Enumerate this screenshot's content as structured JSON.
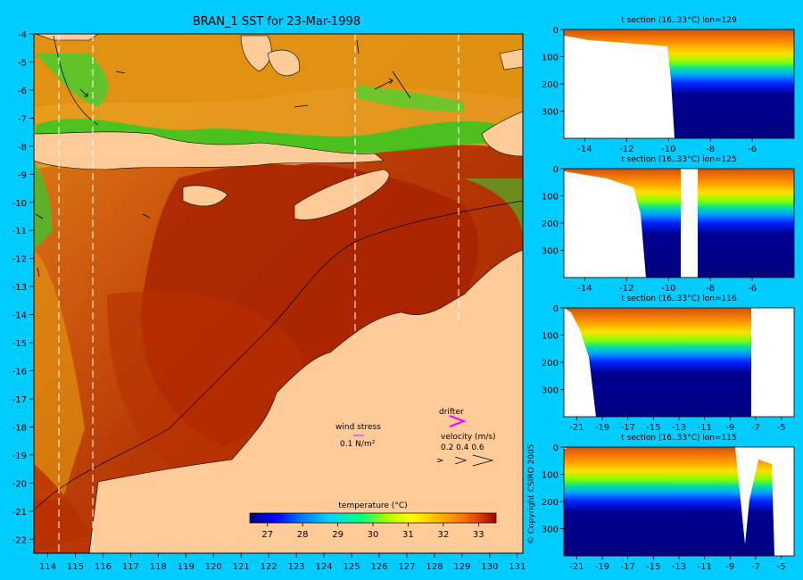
{
  "main": {
    "title": "BRAN_1 SST for 23-Mar-1998",
    "xticks": [
      "114",
      "115",
      "116",
      "117",
      "118",
      "119",
      "120",
      "121",
      "122",
      "123",
      "124",
      "125",
      "126",
      "127",
      "128",
      "129",
      "130",
      "131"
    ],
    "yticks": [
      "-4",
      "-5",
      "-6",
      "-7",
      "-8",
      "-9",
      "-10",
      "-11",
      "-12",
      "-13",
      "-14",
      "-15",
      "-16",
      "-17",
      "-18",
      "-19",
      "-20",
      "-21",
      "-22"
    ],
    "colorbar": {
      "title": "temperature (°C)",
      "ticks": [
        "27",
        "28",
        "29",
        "30",
        "31",
        "32",
        "33"
      ],
      "colors": [
        "#000080",
        "#0000ff",
        "#0080ff",
        "#00d0ff",
        "#00ff80",
        "#80ff00",
        "#ffff00",
        "#ffc000",
        "#ff8000",
        "#e04000",
        "#a00000"
      ]
    },
    "legend": {
      "wind_stress_label": "wind stress",
      "wind_stress_value": "0.1 N/m²",
      "drifter_label": "drifter",
      "velocity_label": "velocity (m/s)",
      "velocity_values": "0.2 0.4 0.6"
    },
    "colors": {
      "land": "#ffcc99",
      "warm": "#b03000",
      "mid": "#e08010",
      "cool": "#20c820"
    }
  },
  "sections": [
    {
      "title": "t section (16..33°C) lon=129",
      "xticks": [
        "-14",
        "-12",
        "-10",
        "-8",
        "-6"
      ],
      "yticks": [
        "0",
        "100",
        "200",
        "300"
      ]
    },
    {
      "title": "t section (16..33°C) lon=125",
      "xticks": [
        "-14",
        "-12",
        "-10",
        "-8",
        "-6"
      ],
      "yticks": [
        "0",
        "100",
        "200",
        "300"
      ]
    },
    {
      "title": "t section (16..33°C) lon=116",
      "xticks": [
        "-21",
        "-19",
        "-17",
        "-15",
        "-13",
        "-11",
        "-9",
        "-7",
        "-5"
      ],
      "yticks": [
        "0",
        "100",
        "200",
        "300"
      ]
    },
    {
      "title": "t section (16..33°C) lon=115",
      "xticks": [
        "-21",
        "-19",
        "-17",
        "-15",
        "-13",
        "-11",
        "-9",
        "-7",
        "-5"
      ],
      "yticks": [
        "0",
        "100",
        "200",
        "300"
      ]
    }
  ],
  "copyright": "© Copyright CSIRO 2005",
  "chart_data": {
    "type": "heatmap",
    "title": "BRAN_1 SST for 23-Mar-1998",
    "xlabel": "",
    "ylabel": "",
    "xlim": [
      113.5,
      131.2
    ],
    "ylim": [
      -22.5,
      -4
    ],
    "colorbar_range": [
      26.5,
      33.5
    ],
    "colorbar_label": "temperature (°C)",
    "section_longitudes": [
      114.6,
      115.8,
      125.4,
      129.2
    ]
  }
}
